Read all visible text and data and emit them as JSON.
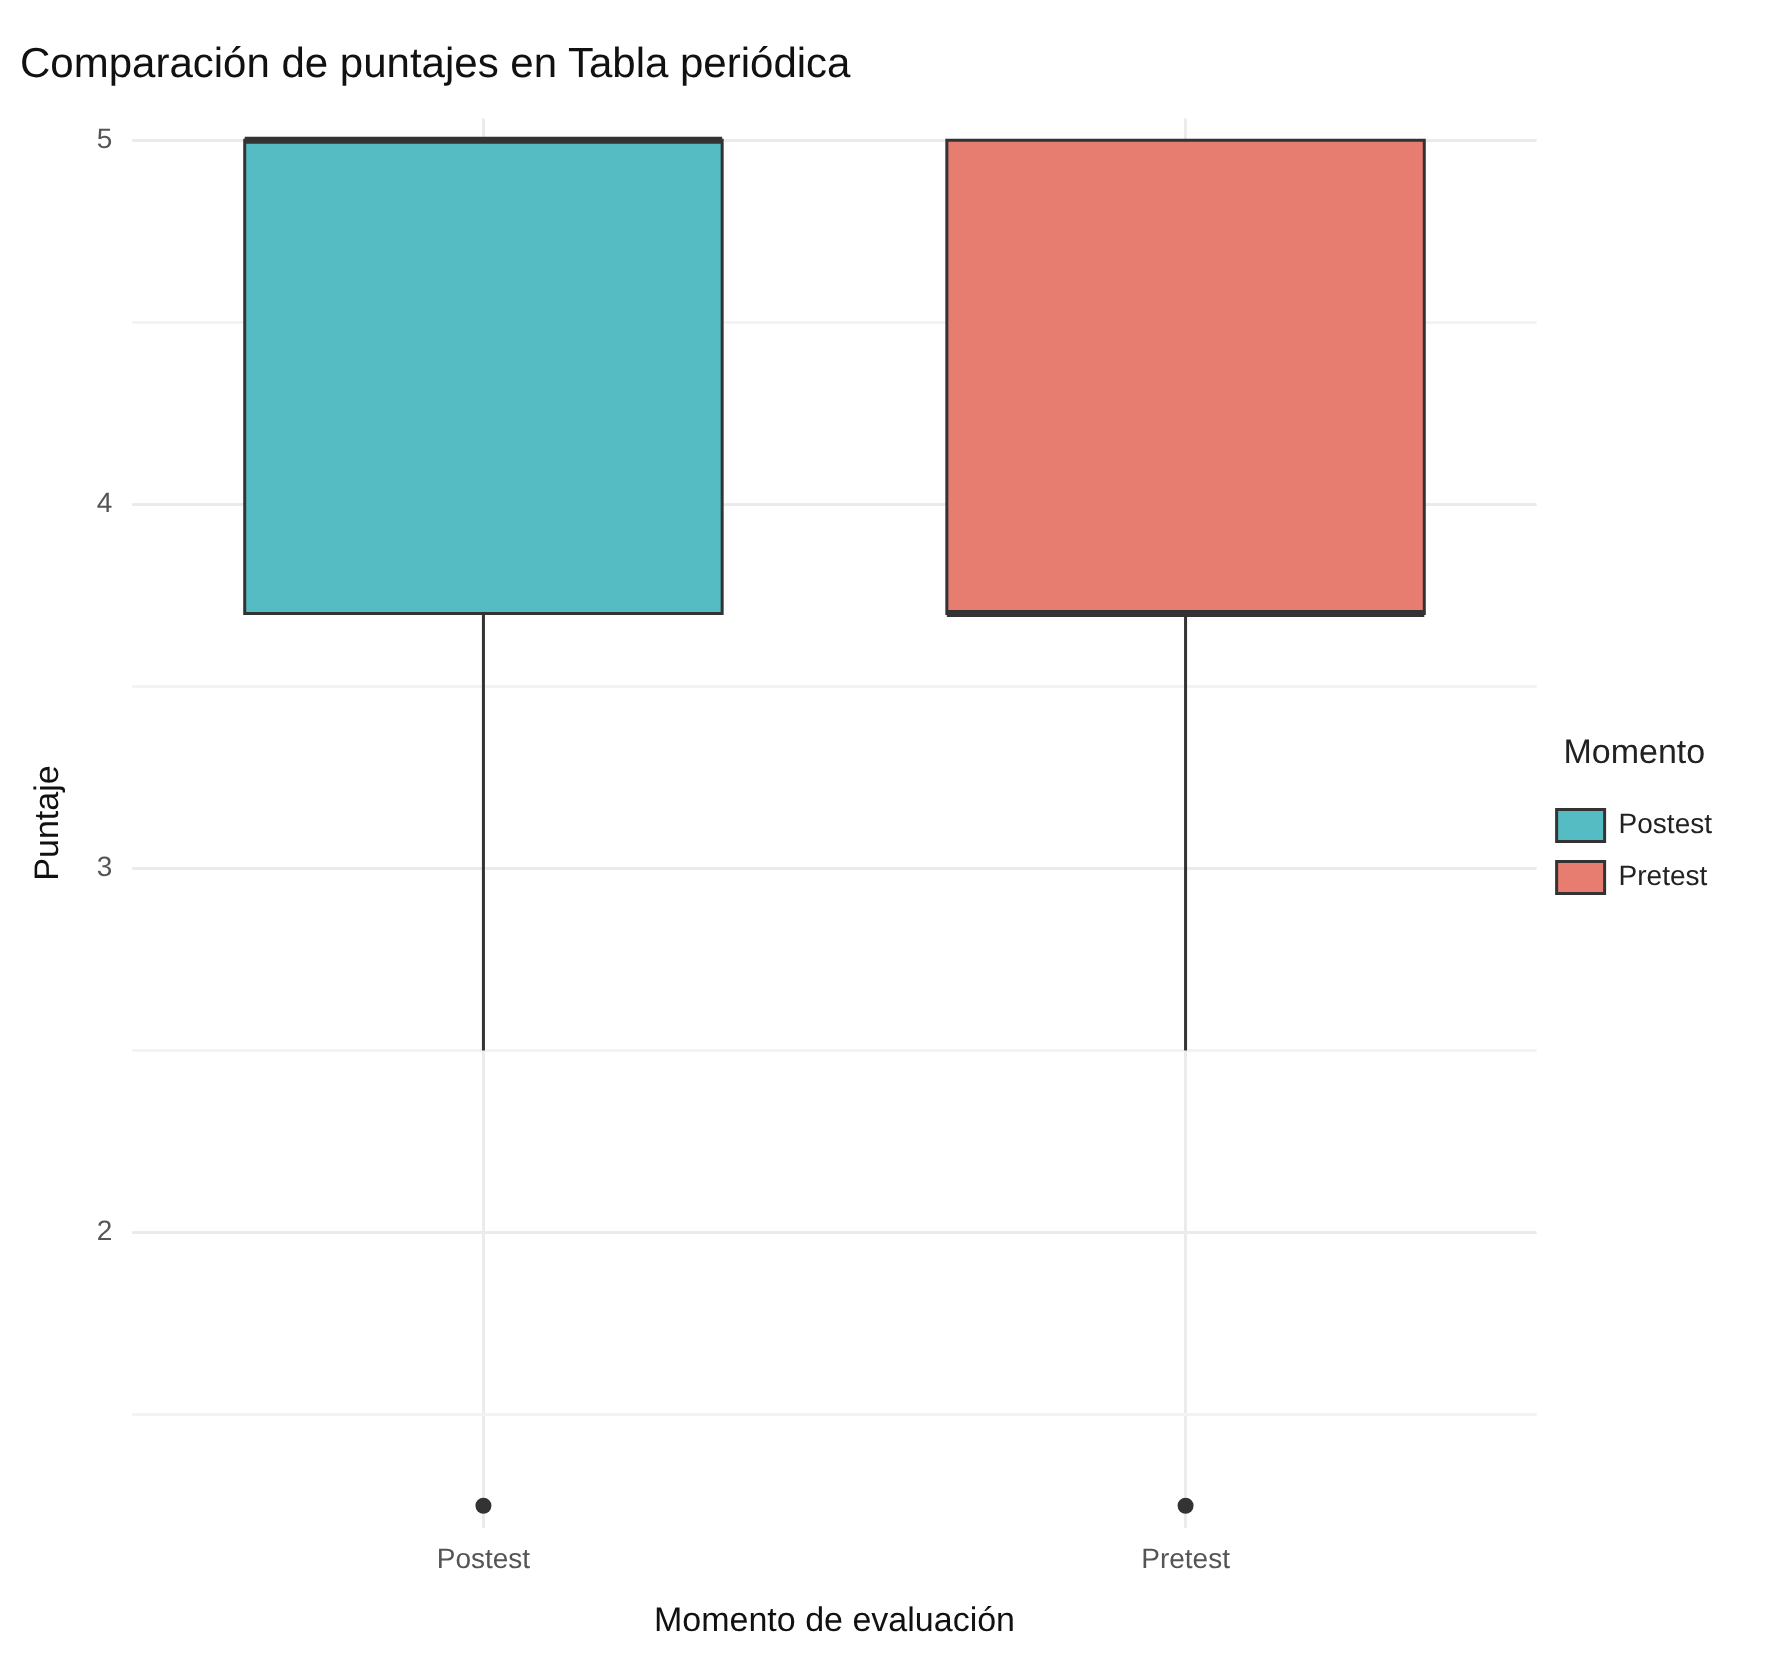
{
  "chart_data": {
    "type": "box",
    "title": "Comparación de puntajes en Tabla periódica",
    "xlabel": "Momento de evaluación",
    "ylabel": "Puntaje",
    "legend_title": "Momento",
    "categories": [
      "Postest",
      "Pretest"
    ],
    "series": [
      {
        "name": "Postest",
        "color": "#54bcc2",
        "boxes": [
          {
            "low": 2.5,
            "q1": 3.7,
            "median": 5,
            "q3": 5,
            "high": 5,
            "outliers": [
              1.25
            ]
          },
          null
        ]
      },
      {
        "name": "Pretest",
        "color": "#e77c71",
        "boxes": [
          null,
          {
            "low": 2.5,
            "q1": 3.7,
            "median": 3.7,
            "q3": 5,
            "high": 5,
            "outliers": [
              1.25
            ]
          }
        ]
      }
    ],
    "ylim": [
      1.19,
      5.06
    ],
    "yticks": [
      {
        "value": 1.5,
        "label": null
      },
      2,
      {
        "value": 2.5,
        "label": null
      },
      3,
      {
        "value": 3.5,
        "label": null
      },
      4,
      {
        "value": 4.5,
        "label": null
      },
      5
    ],
    "grid": true,
    "legend": "right"
  }
}
